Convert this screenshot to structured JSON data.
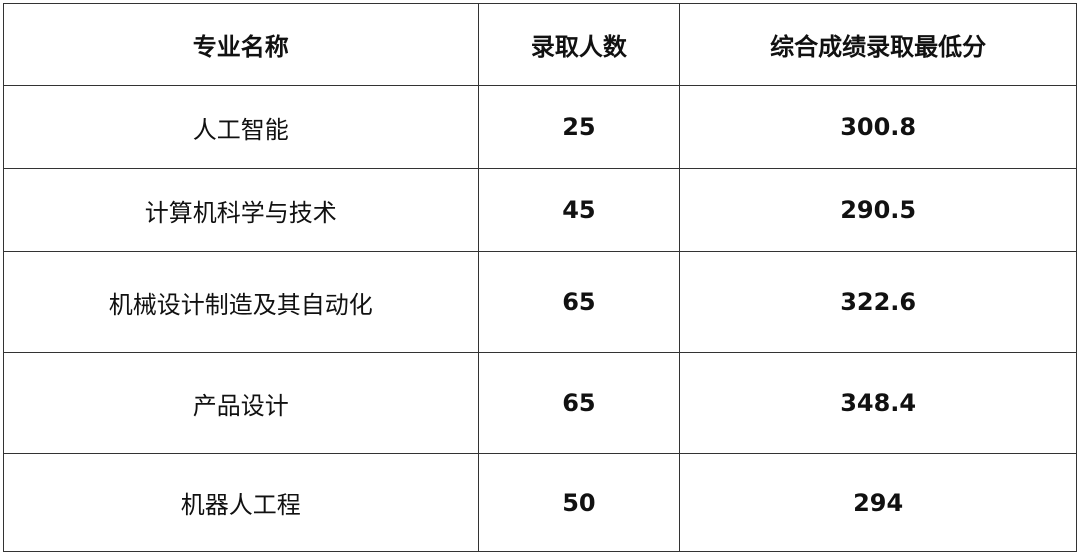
{
  "table": {
    "headers": [
      "专业名称",
      "录取人数",
      "综合成绩录取最低分"
    ],
    "rows": [
      {
        "major": "人工智能",
        "admitted": "25",
        "min_score": "300.8"
      },
      {
        "major": "计算机科学与技术",
        "admitted": "45",
        "min_score": "290.5"
      },
      {
        "major": "机械设计制造及其自动化",
        "admitted": "65",
        "min_score": "322.6"
      },
      {
        "major": "产品设计",
        "admitted": "65",
        "min_score": "348.4"
      },
      {
        "major": "机器人工程",
        "admitted": "50",
        "min_score": "294"
      }
    ]
  }
}
